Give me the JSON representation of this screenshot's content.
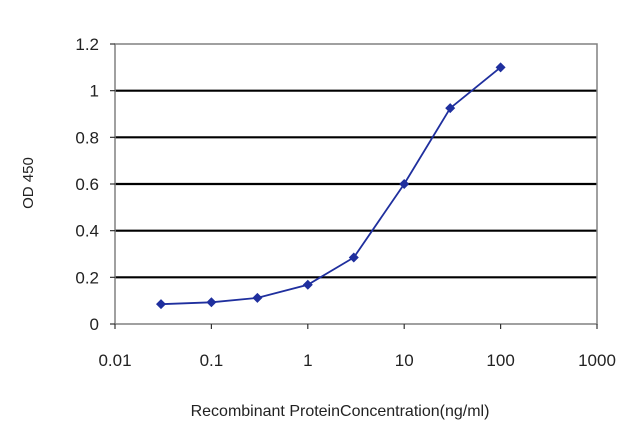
{
  "chart_data": {
    "type": "line",
    "xscale": "log",
    "xlim": [
      0.01,
      1000
    ],
    "ylim": [
      0,
      1.2
    ],
    "xticks": [
      "0.01",
      "0.1",
      "1",
      "10",
      "100",
      "1000"
    ],
    "xtick_values": [
      0.01,
      0.1,
      1,
      10,
      100,
      1000
    ],
    "yticks": [
      "0",
      "0.2",
      "0.4",
      "0.6",
      "0.8",
      "1",
      "1.2"
    ],
    "ytick_values": [
      0,
      0.2,
      0.4,
      0.6,
      0.8,
      1.0,
      1.2
    ],
    "xlabel": "Recombinant ProteinConcentration(ng/ml)",
    "ylabel": "OD 450",
    "grid": "horizontal",
    "series": [
      {
        "color": "#1f2f9e",
        "x": [
          0.03,
          0.1,
          0.3,
          1,
          3,
          10,
          30,
          100
        ],
        "y": [
          0.085,
          0.093,
          0.112,
          0.168,
          0.285,
          0.6,
          0.925,
          1.1
        ]
      }
    ],
    "colors": {
      "plot_background": "#ffffff",
      "plot_border": "#808080",
      "grid": "#000000",
      "line": "#1f2f9e",
      "marker": "#1f2f9e"
    }
  }
}
